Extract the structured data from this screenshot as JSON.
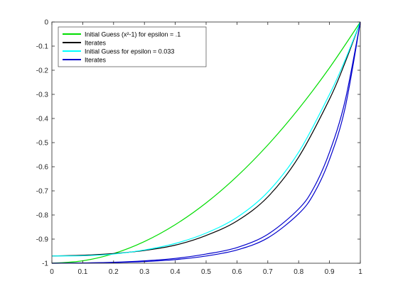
{
  "chart_data": {
    "type": "line",
    "title": "",
    "xlabel": "",
    "ylabel": "",
    "xlim": [
      0,
      1
    ],
    "ylim": [
      -1,
      0
    ],
    "grid": false,
    "legend_position": "top-left",
    "xticks": [
      "0",
      "0.1",
      "0.2",
      "0.3",
      "0.4",
      "0.5",
      "0.6",
      "0.7",
      "0.8",
      "0.9",
      "1"
    ],
    "yticks": [
      "0",
      "-0.1",
      "-0.2",
      "-0.3",
      "-0.4",
      "-0.5",
      "-0.6",
      "-0.7",
      "-0.8",
      "-0.9",
      "-1"
    ],
    "series": [
      {
        "name": "Initial Guess (x²-1) for epsilon = .1",
        "color": "#00dd00",
        "x": [
          0,
          0.1,
          0.2,
          0.3,
          0.4,
          0.5,
          0.6,
          0.7,
          0.8,
          0.9,
          1.0
        ],
        "y": [
          -1.0,
          -0.99,
          -0.96,
          -0.91,
          -0.84,
          -0.75,
          -0.64,
          -0.51,
          -0.36,
          -0.19,
          0.0
        ]
      },
      {
        "name": "Iterates",
        "color": "#000000",
        "x": [
          0,
          0.1,
          0.2,
          0.3,
          0.4,
          0.5,
          0.6,
          0.7,
          0.8,
          0.9,
          0.95,
          1.0
        ],
        "y": [
          -0.97,
          -0.967,
          -0.96,
          -0.947,
          -0.925,
          -0.885,
          -0.825,
          -0.725,
          -0.56,
          -0.32,
          -0.17,
          0.0
        ]
      },
      {
        "name": "Initial Guess for epsilon = 0.033",
        "color": "#00ffff",
        "x": [
          0,
          0.1,
          0.2,
          0.3,
          0.4,
          0.5,
          0.6,
          0.7,
          0.8,
          0.9,
          0.95,
          1.0
        ],
        "y": [
          -0.97,
          -0.969,
          -0.962,
          -0.945,
          -0.918,
          -0.875,
          -0.81,
          -0.705,
          -0.54,
          -0.3,
          -0.16,
          0.0
        ]
      },
      {
        "name": "Iterates",
        "color": "#0000cc",
        "x": [
          0,
          0.1,
          0.2,
          0.3,
          0.4,
          0.5,
          0.6,
          0.7,
          0.8,
          0.85,
          0.9,
          0.95,
          1.0
        ],
        "y": [
          -1.0,
          -0.999,
          -0.997,
          -0.993,
          -0.985,
          -0.97,
          -0.945,
          -0.895,
          -0.795,
          -0.71,
          -0.57,
          -0.36,
          0.0
        ]
      },
      {
        "name": "",
        "color": "#0000cc",
        "x": [
          0,
          0.1,
          0.2,
          0.3,
          0.4,
          0.5,
          0.6,
          0.7,
          0.8,
          0.85,
          0.9,
          0.95,
          1.0
        ],
        "y": [
          -1.0,
          -0.999,
          -0.996,
          -0.99,
          -0.98,
          -0.962,
          -0.935,
          -0.88,
          -0.775,
          -0.685,
          -0.54,
          -0.33,
          0.0
        ]
      }
    ]
  }
}
